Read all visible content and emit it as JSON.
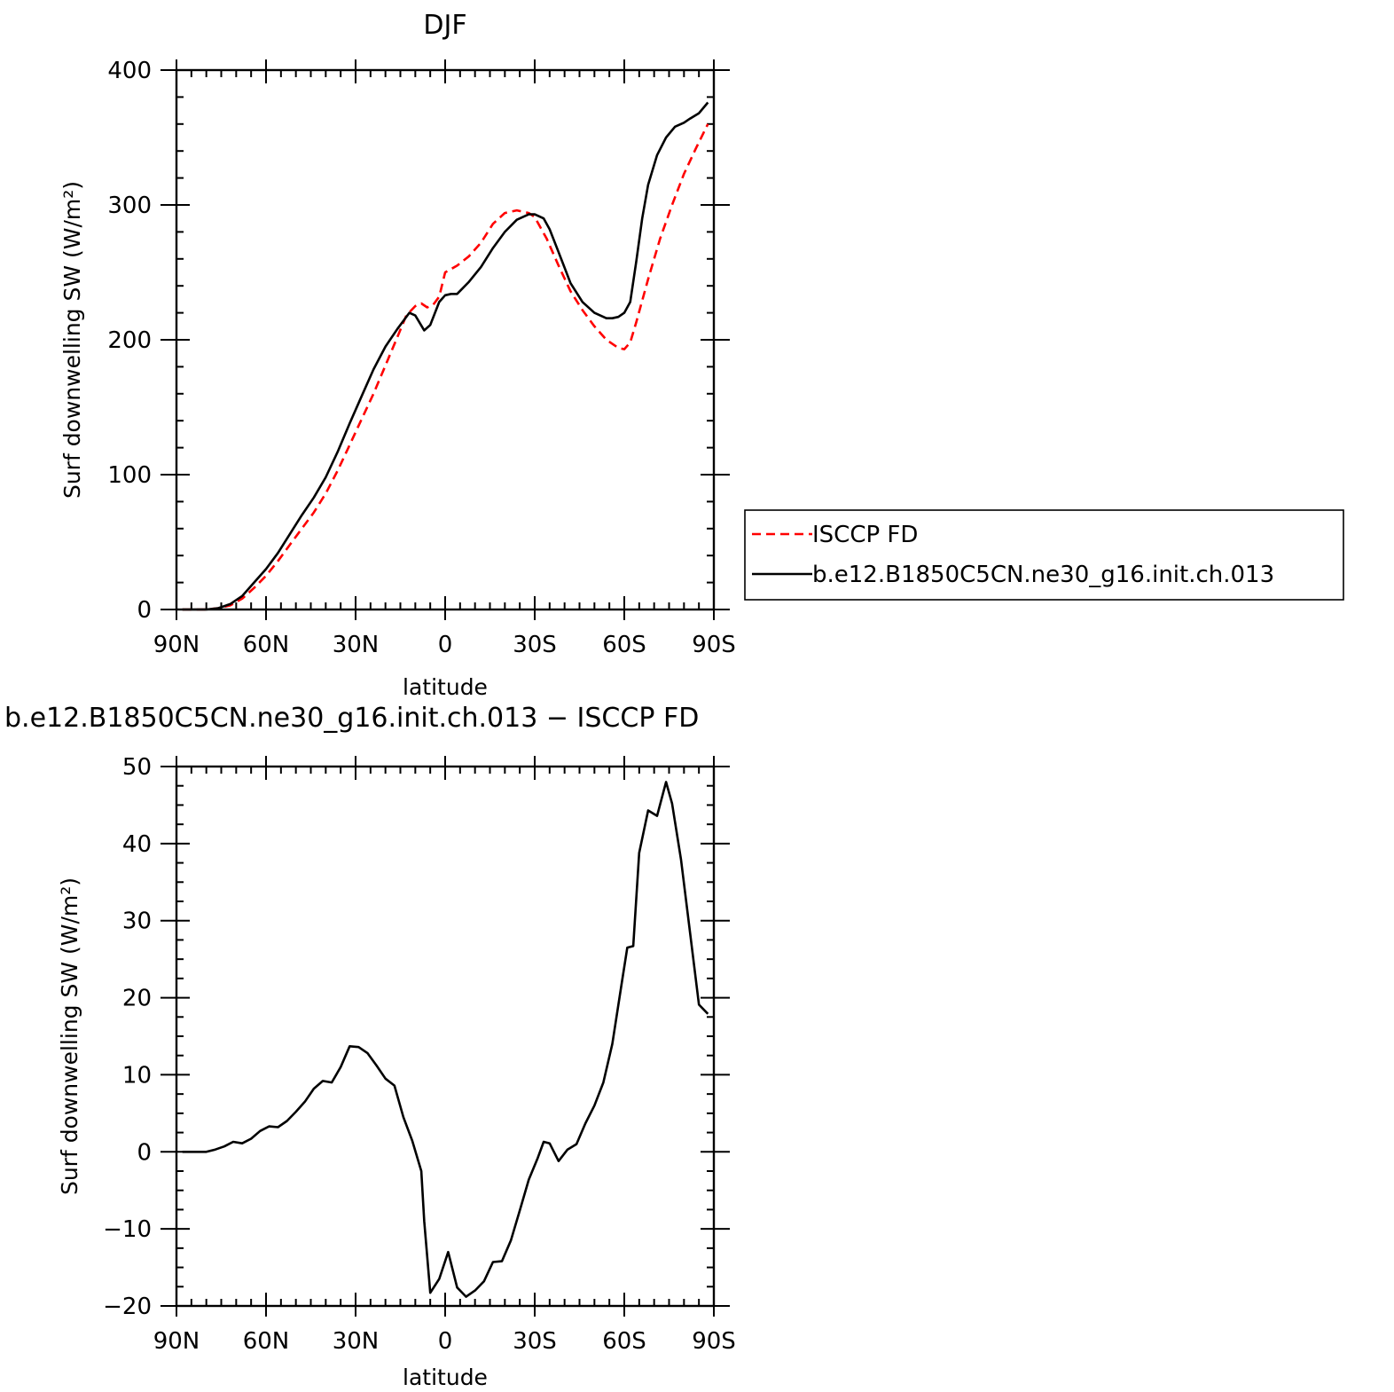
{
  "colors": {
    "obs": "#ff0000",
    "model": "#000000"
  },
  "legend": {
    "placement": "right",
    "entries": [
      {
        "label": "ISCCP FD",
        "style": "dashed",
        "color": "#ff0000"
      },
      {
        "label": "b.e12.B1850C5CN.ne30_g16.init.ch.013",
        "style": "solid",
        "color": "#000000"
      }
    ]
  },
  "chart_data": [
    {
      "type": "line",
      "title": "DJF",
      "xlabel": "latitude",
      "ylabel": "Surf downwelling SW (W/m²)",
      "xlim": [
        -90,
        90
      ],
      "ylim": [
        0,
        400
      ],
      "xticks": [
        {
          "value": -90,
          "label": "90N"
        },
        {
          "value": -60,
          "label": "60N"
        },
        {
          "value": -30,
          "label": "30N"
        },
        {
          "value": 0,
          "label": "0"
        },
        {
          "value": 30,
          "label": "30S"
        },
        {
          "value": 60,
          "label": "60S"
        },
        {
          "value": 90,
          "label": "90S"
        }
      ],
      "yticks": [
        {
          "value": 0,
          "label": "0"
        },
        {
          "value": 100,
          "label": "100"
        },
        {
          "value": 200,
          "label": "200"
        },
        {
          "value": 300,
          "label": "300"
        },
        {
          "value": 400,
          "label": "400"
        }
      ],
      "series": [
        {
          "name": "ISCCP FD",
          "style": "dashed",
          "color": "#ff0000",
          "x": [
            -88,
            -80,
            -76,
            -72,
            -68,
            -64,
            -60,
            -56,
            -52,
            -48,
            -44,
            -40,
            -36,
            -32,
            -28,
            -24,
            -20,
            -16,
            -13,
            -10,
            -8,
            -6,
            -4,
            -2,
            0,
            4,
            8,
            12,
            16,
            20,
            24,
            28,
            30,
            34,
            38,
            42,
            46,
            50,
            54,
            58,
            60,
            62,
            64,
            68,
            72,
            76,
            80,
            84,
            88
          ],
          "y": [
            0,
            0,
            1,
            3,
            8,
            16,
            25,
            36,
            48,
            60,
            72,
            86,
            103,
            122,
            141,
            160,
            181,
            202,
            218,
            225,
            227,
            224,
            226,
            232,
            250,
            255,
            262,
            272,
            286,
            294,
            296,
            294,
            291,
            275,
            255,
            236,
            222,
            210,
            200,
            194,
            193,
            198,
            213,
            245,
            275,
            300,
            323,
            342,
            360
          ]
        },
        {
          "name": "b.e12.B1850C5CN.ne30_g16.init.ch.013",
          "style": "solid",
          "color": "#000000",
          "x": [
            -88,
            -80,
            -76,
            -72,
            -68,
            -64,
            -60,
            -56,
            -52,
            -48,
            -44,
            -40,
            -36,
            -32,
            -28,
            -24,
            -20,
            -16,
            -12,
            -10,
            -7,
            -5,
            -2,
            0,
            2,
            4,
            8,
            12,
            16,
            20,
            24,
            28,
            30,
            33,
            35,
            38,
            42,
            46,
            50,
            54,
            56,
            58,
            60,
            62,
            64,
            66,
            68,
            71,
            74,
            77,
            80,
            82,
            85,
            88
          ],
          "y": [
            0,
            0,
            1,
            4,
            10,
            20,
            30,
            42,
            56,
            70,
            83,
            98,
            117,
            138,
            158,
            178,
            195,
            208,
            220,
            218,
            207,
            211,
            228,
            233,
            234,
            234,
            243,
            254,
            268,
            280,
            289,
            293,
            293,
            290,
            282,
            265,
            242,
            228,
            220,
            216,
            216,
            217,
            220,
            228,
            258,
            290,
            315,
            337,
            350,
            358,
            361,
            364,
            368,
            376
          ]
        }
      ]
    },
    {
      "type": "line",
      "title": "b.e12.B1850C5CN.ne30_g16.init.ch.013 − ISCCP FD",
      "xlabel": "latitude",
      "ylabel": "Surf downwelling SW (W/m²)",
      "xlim": [
        -90,
        90
      ],
      "ylim": [
        -20,
        50
      ],
      "xticks": [
        {
          "value": -90,
          "label": "90N"
        },
        {
          "value": -60,
          "label": "60N"
        },
        {
          "value": -30,
          "label": "30N"
        },
        {
          "value": 0,
          "label": "0"
        },
        {
          "value": 30,
          "label": "30S"
        },
        {
          "value": 60,
          "label": "60S"
        },
        {
          "value": 90,
          "label": "90S"
        }
      ],
      "yticks": [
        {
          "value": -20,
          "label": "−20"
        },
        {
          "value": -10,
          "label": "−10"
        },
        {
          "value": 0,
          "label": "0"
        },
        {
          "value": 10,
          "label": "10"
        },
        {
          "value": 20,
          "label": "20"
        },
        {
          "value": 30,
          "label": "30"
        },
        {
          "value": 40,
          "label": "40"
        },
        {
          "value": 50,
          "label": "50"
        }
      ],
      "series": [
        {
          "name": "",
          "style": "solid",
          "color": "#000000",
          "x": [
            -88,
            -80,
            -77,
            -74,
            -71,
            -68,
            -65,
            -62,
            -59,
            -56,
            -53,
            -50,
            -47,
            -44,
            -41,
            -38,
            -35,
            -32,
            -29,
            -26,
            -23,
            -20,
            -17,
            -14,
            -11,
            -8,
            -7,
            -5,
            -2,
            1,
            4,
            7,
            10,
            13,
            16,
            19,
            22,
            25,
            28,
            31,
            33,
            35,
            38,
            41,
            44,
            47,
            50,
            53,
            56,
            59,
            61,
            63,
            65,
            68,
            71,
            74,
            76,
            79,
            82,
            85,
            88
          ],
          "y": [
            0,
            0,
            0.3,
            0.7,
            1.3,
            1.1,
            1.7,
            2.7,
            3.3,
            3.2,
            4.0,
            5.2,
            6.5,
            8.2,
            9.2,
            9.0,
            11.0,
            13.7,
            13.6,
            12.8,
            11.2,
            9.5,
            8.6,
            4.5,
            1.4,
            -2.5,
            -9.0,
            -18.3,
            -16.5,
            -13.0,
            -17.6,
            -18.8,
            -18.0,
            -16.8,
            -14.3,
            -14.2,
            -11.5,
            -7.6,
            -3.6,
            -0.8,
            1.3,
            1.1,
            -1.2,
            0.3,
            1.0,
            3.7,
            6.0,
            9.0,
            14.0,
            21.5,
            26.5,
            26.7,
            38.8,
            44.3,
            43.6,
            48.0,
            45.2,
            37.9,
            28.5,
            19.1,
            17.9
          ]
        }
      ]
    }
  ]
}
